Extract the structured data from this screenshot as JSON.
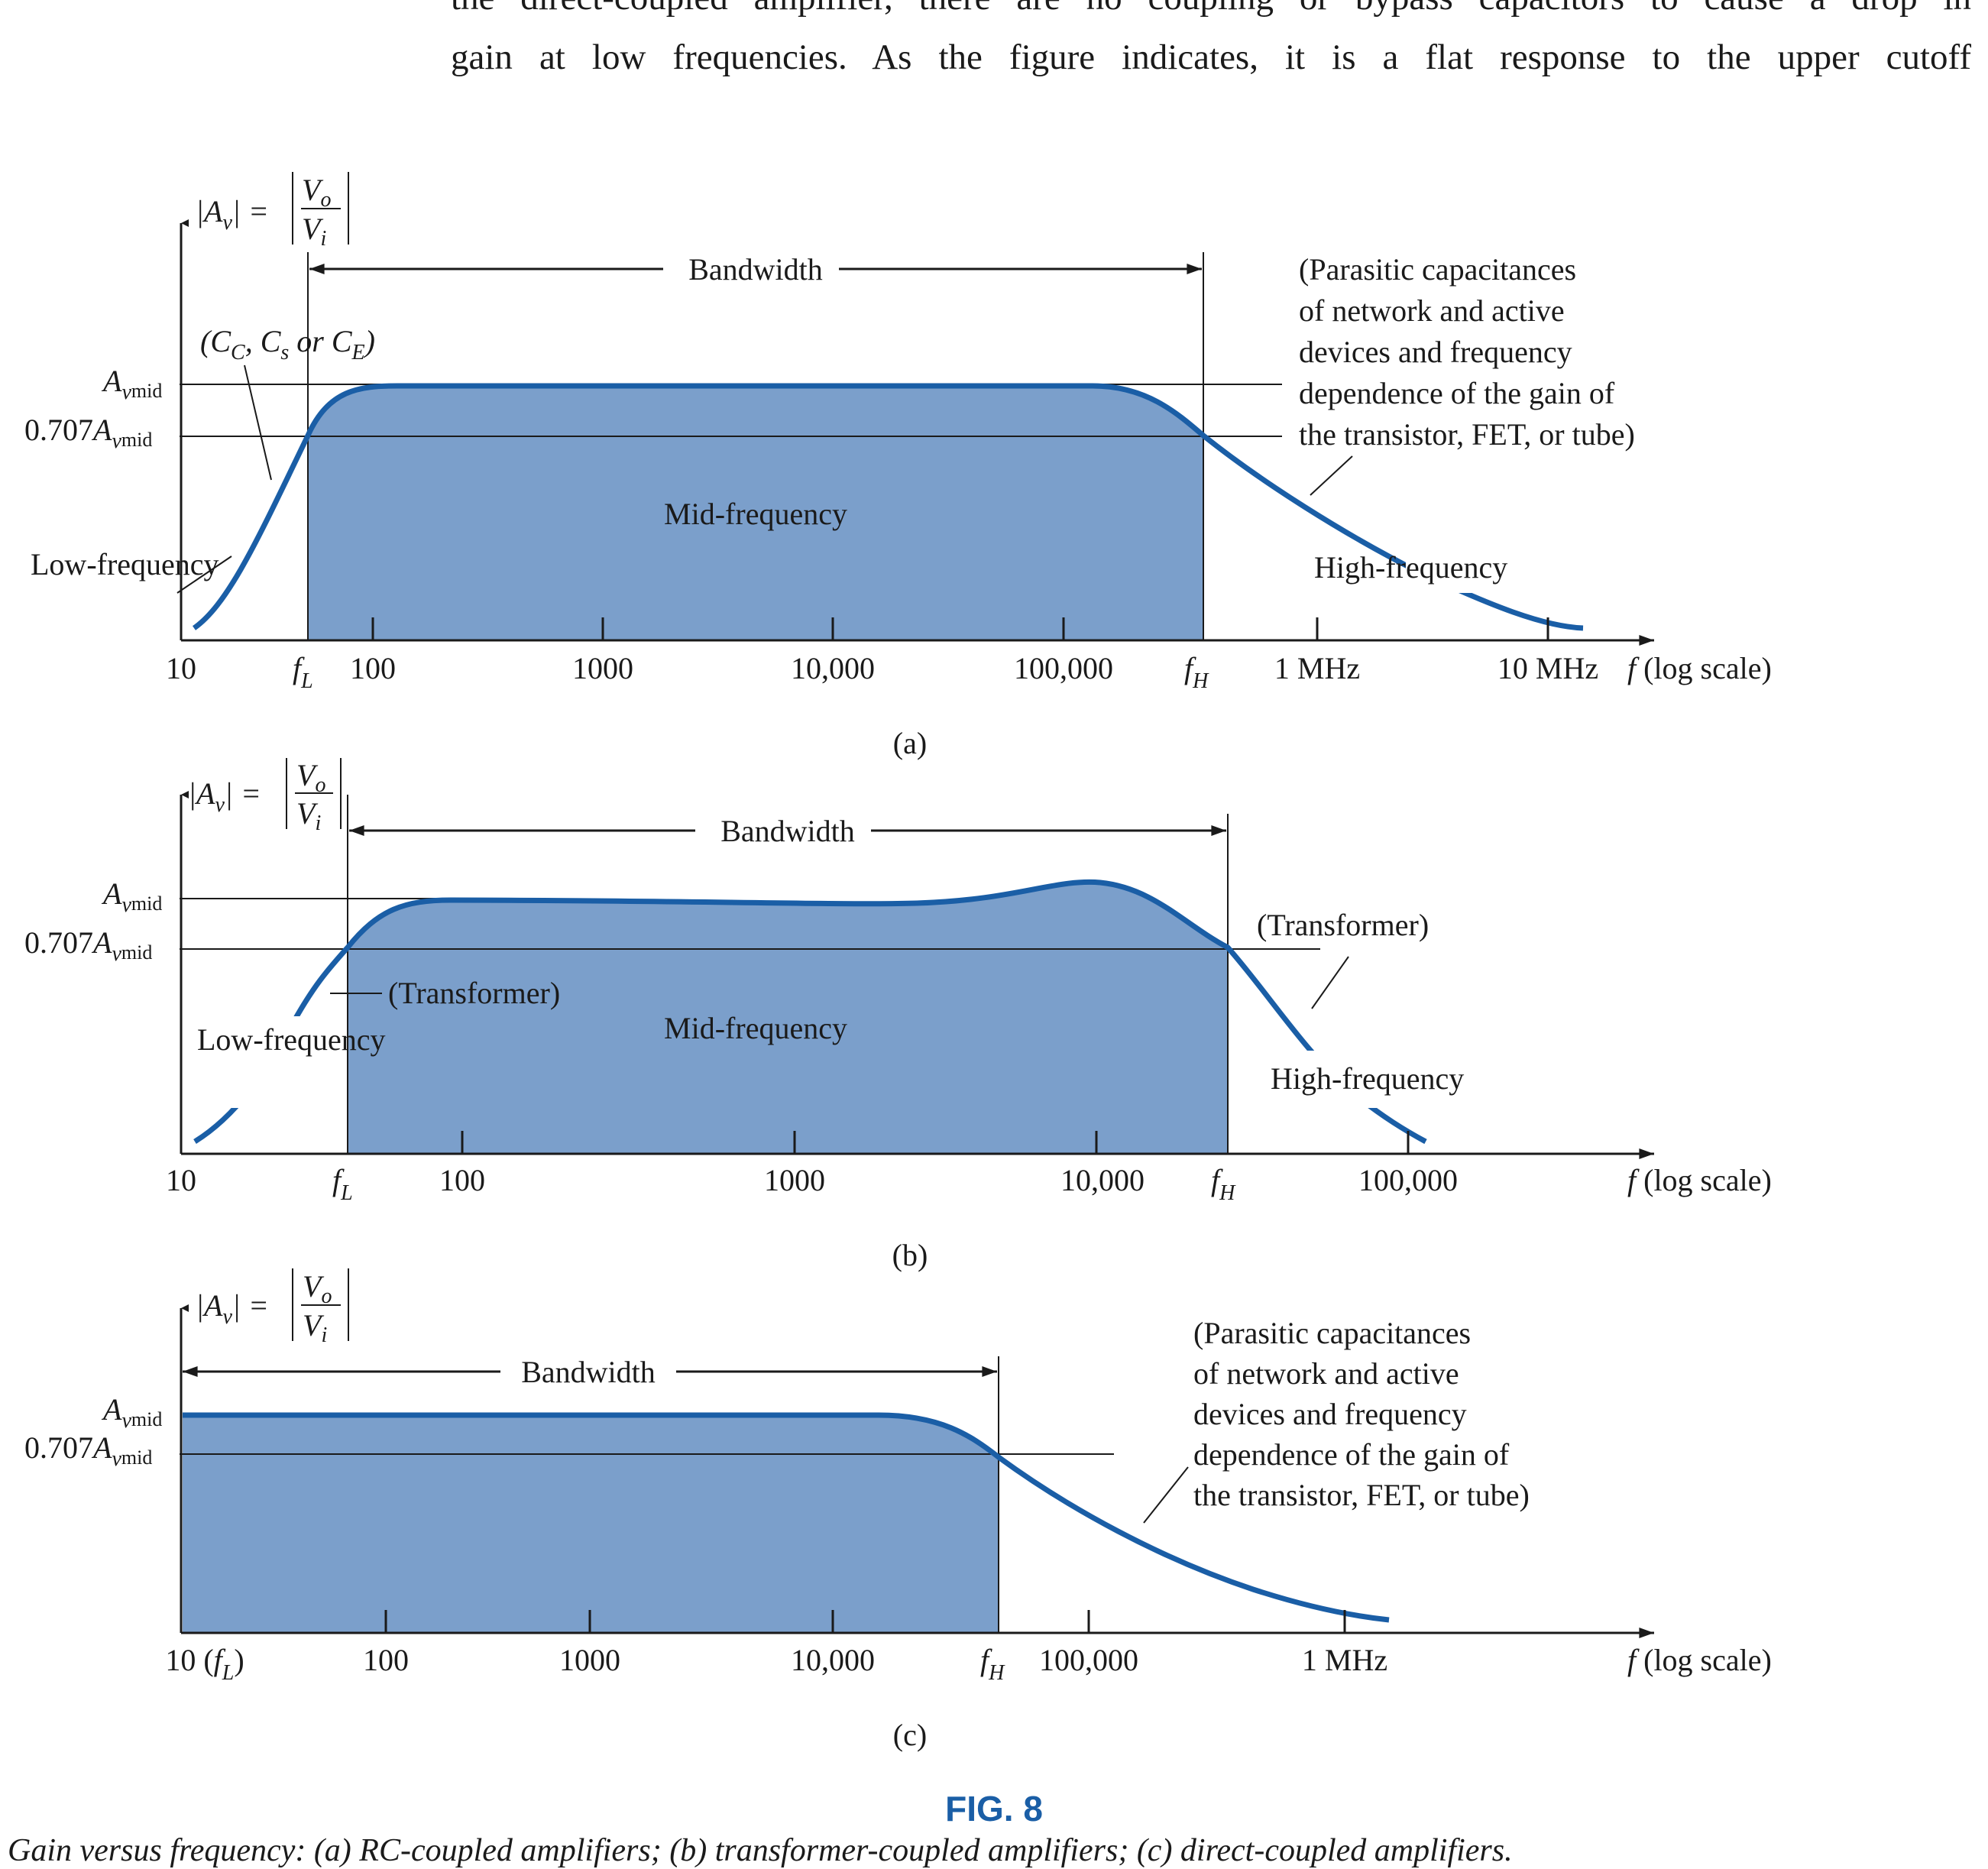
{
  "intro_lines": [
    "the direct-coupled amplifier, there are no coupling or bypass capacitors to cause a drop in",
    "gain at low frequencies. As the figure indicates, it is a flat response to the upper cutoff"
  ],
  "figure_number": "FIG. 8",
  "figure_caption": "Gain versus frequency: (a) RC-coupled amplifiers; (b) transformer-coupled amplifiers; (c) direct-coupled amplifiers.",
  "colors": {
    "fill": "#7b9fcb",
    "curve": "#1a5ea6",
    "axis": "#1a1a1a"
  },
  "common_labels": {
    "y_axis": "|A_v| = |V_o / V_i|",
    "x_axis": "f (log scale)",
    "bandwidth": "Bandwidth",
    "a_mid": "A_vmid",
    "a_707": "0.707A_vmid",
    "f_L": "f_L",
    "f_H": "f_H"
  },
  "chart_data": [
    {
      "type": "area",
      "panel": "(a)",
      "x_scale": "log",
      "x_ticks": [
        "10",
        "100",
        "1000",
        "10,000",
        "100,000",
        "1 MHz",
        "10 MHz"
      ],
      "gain_levels": [
        "A_vmid",
        "0.707A_vmid"
      ],
      "regions": [
        "Low-frequency",
        "Mid-frequency",
        "High-frequency"
      ],
      "annotations": [
        "(C_C, C_s or C_E)",
        "(Parasitic capacitances",
        "of network and active",
        "devices and frequency",
        "dependence of the gain of",
        "the transistor, FET, or tube)"
      ]
    },
    {
      "type": "area",
      "panel": "(b)",
      "x_scale": "log",
      "x_ticks": [
        "10",
        "100",
        "1000",
        "10,000",
        "100,000"
      ],
      "gain_levels": [
        "A_vmid",
        "0.707A_vmid"
      ],
      "regions": [
        "Low-frequency",
        "Mid-frequency",
        "High-frequency"
      ],
      "annotations": [
        "(Transformer)",
        "(Transformer)"
      ]
    },
    {
      "type": "area",
      "panel": "(c)",
      "x_scale": "log",
      "x_ticks": [
        "10 (f_L)",
        "100",
        "1000",
        "10,000",
        "100,000",
        "1 MHz"
      ],
      "gain_levels": [
        "A_vmid",
        "0.707A_vmid"
      ],
      "annotations": [
        "(Parasitic capacitances",
        "of network and active",
        "devices and frequency",
        "dependence of the gain of",
        "the transistor, FET, or tube)"
      ]
    }
  ]
}
